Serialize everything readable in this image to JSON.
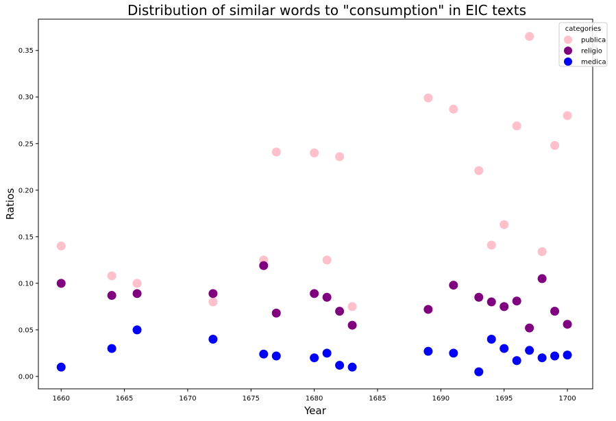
{
  "chart_data": {
    "type": "scatter",
    "title": "Distribution of similar words to \"consumption\" in EIC texts",
    "xlabel": "Year",
    "ylabel": "Ratios",
    "xlim": [
      1658.2,
      1702.0
    ],
    "ylim": [
      -0.0133,
      0.3836
    ],
    "xticks": [
      1660,
      1665,
      1670,
      1675,
      1680,
      1685,
      1690,
      1695,
      1700
    ],
    "yticks": [
      0.0,
      0.05,
      0.1,
      0.15,
      0.2,
      0.25,
      0.3,
      0.35
    ],
    "grid": false,
    "legend": {
      "title": "categories",
      "placement": "top-right"
    },
    "series": [
      {
        "name": "publica",
        "color": "#ffc0cb",
        "x": [
          1660,
          1664,
          1666,
          1672,
          1676,
          1677,
          1680,
          1681,
          1682,
          1683,
          1689,
          1691,
          1693,
          1694,
          1695,
          1696,
          1697,
          1698,
          1699,
          1700
        ],
        "y": [
          0.14,
          0.108,
          0.1,
          0.08,
          0.125,
          0.241,
          0.24,
          0.125,
          0.236,
          0.075,
          0.299,
          0.287,
          0.221,
          0.141,
          0.163,
          0.269,
          0.365,
          0.134,
          0.248,
          0.28
        ]
      },
      {
        "name": "religio",
        "color": "#800080",
        "x": [
          1660,
          1664,
          1666,
          1672,
          1676,
          1677,
          1680,
          1681,
          1682,
          1683,
          1689,
          1691,
          1693,
          1694,
          1695,
          1696,
          1697,
          1698,
          1699,
          1700
        ],
        "y": [
          0.1,
          0.087,
          0.089,
          0.089,
          0.119,
          0.068,
          0.089,
          0.085,
          0.07,
          0.055,
          0.072,
          0.098,
          0.085,
          0.08,
          0.075,
          0.081,
          0.052,
          0.105,
          0.07,
          0.056
        ]
      },
      {
        "name": "medica",
        "color": "#0000ff",
        "x": [
          1660,
          1664,
          1666,
          1672,
          1676,
          1677,
          1680,
          1681,
          1682,
          1683,
          1689,
          1691,
          1693,
          1694,
          1695,
          1696,
          1697,
          1698,
          1699,
          1700
        ],
        "y": [
          0.01,
          0.03,
          0.05,
          0.04,
          0.024,
          0.022,
          0.02,
          0.025,
          0.012,
          0.01,
          0.027,
          0.025,
          0.005,
          0.04,
          0.03,
          0.017,
          0.028,
          0.02,
          0.022,
          0.023
        ]
      }
    ]
  }
}
